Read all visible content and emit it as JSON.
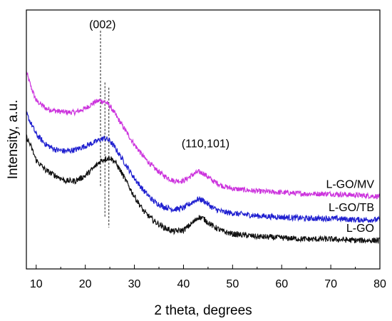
{
  "chart_data": {
    "type": "line",
    "title": "",
    "xlabel": "2 theta, degrees",
    "ylabel": "Intensity, a.u.",
    "xlim": [
      8,
      80
    ],
    "ylim": [
      0,
      100
    ],
    "xticks": [
      10,
      20,
      30,
      40,
      50,
      60,
      70,
      80
    ],
    "y_ticks_labeled": false,
    "grid": false,
    "legend": "inline labels at right end of each curve",
    "annotations": [
      {
        "text": "(002)",
        "x": 23.5,
        "y": 93
      },
      {
        "text": "(110,101)",
        "x": 44.5,
        "y": 47
      }
    ],
    "reference_lines": [
      {
        "x": 23.1,
        "y_from": 92,
        "y_to": 32,
        "style": "dashed"
      },
      {
        "x": 24.0,
        "y_from": 72,
        "y_to": 20,
        "style": "dashed"
      },
      {
        "x": 24.8,
        "y_from": 70,
        "y_to": 16,
        "style": "dashed"
      }
    ],
    "series": [
      {
        "name": "L-GO/MV",
        "color": "#cc33dd",
        "noise": 1.0,
        "x": [
          8,
          9,
          10,
          12,
          14,
          16,
          18,
          20,
          22,
          23,
          24,
          25,
          26,
          28,
          30,
          32,
          34,
          36,
          38,
          40,
          42,
          43,
          44,
          46,
          48,
          50,
          55,
          60,
          65,
          70,
          75,
          80
        ],
        "y": [
          76,
          70,
          65,
          62,
          61,
          60.5,
          60.5,
          62,
          64.5,
          65,
          64.5,
          63,
          60,
          54,
          48,
          43,
          39,
          36,
          34,
          34,
          36.5,
          37.5,
          37,
          34,
          32,
          31,
          30,
          29.5,
          29,
          29,
          28.5,
          28
        ]
      },
      {
        "name": "L-GO/TB",
        "color": "#2020d0",
        "noise": 1.1,
        "x": [
          8,
          9,
          10,
          12,
          14,
          16,
          18,
          20,
          22,
          23,
          24,
          25,
          26,
          28,
          30,
          32,
          34,
          36,
          38,
          40,
          42,
          43,
          44,
          46,
          48,
          50,
          55,
          60,
          65,
          70,
          75,
          80
        ],
        "y": [
          60,
          56,
          52,
          48,
          46,
          45.5,
          46,
          47.5,
          49,
          50,
          50.5,
          49.5,
          47,
          41,
          35,
          30,
          26,
          24,
          23,
          23.5,
          26,
          27,
          26.5,
          23.5,
          22,
          21.5,
          20.5,
          20,
          19.5,
          19.5,
          19,
          19
        ]
      },
      {
        "name": "L-GO",
        "color": "#111111",
        "noise": 1.1,
        "x": [
          8,
          9,
          10,
          12,
          14,
          16,
          18,
          20,
          22,
          23,
          24,
          25,
          26,
          27,
          28,
          30,
          32,
          34,
          36,
          38,
          40,
          42,
          43,
          44,
          46,
          48,
          50,
          55,
          60,
          65,
          70,
          75,
          80
        ],
        "y": [
          51,
          47,
          42,
          38,
          36,
          34,
          34,
          36,
          39.5,
          41.5,
          42.5,
          43,
          41.5,
          38.5,
          35,
          28,
          22,
          18.5,
          16,
          14.5,
          15,
          18,
          20,
          19.5,
          16.5,
          14.5,
          13.5,
          12.5,
          12,
          11.5,
          11.5,
          11,
          11
        ]
      }
    ]
  }
}
